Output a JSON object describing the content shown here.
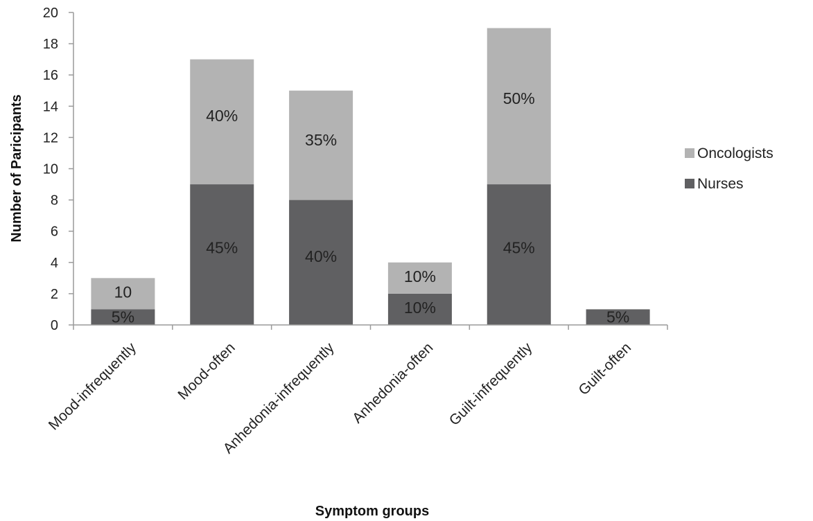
{
  "chart_data": {
    "type": "bar",
    "stacked": true,
    "categories": [
      "Mood-infrequently",
      "Mood-often",
      "Anhedonia-infrequently",
      "Anhedonia-often",
      "Guilt-infrequently",
      "Guilt-often"
    ],
    "series": [
      {
        "name": "Nurses",
        "color": "#606062",
        "values": [
          1,
          9,
          8,
          2,
          9,
          1
        ],
        "labels": [
          "5%",
          "45%",
          "40%",
          "10%",
          "45%",
          "5%"
        ]
      },
      {
        "name": "Oncologists",
        "color": "#b3b3b3",
        "values": [
          2,
          8,
          7,
          2,
          10,
          0
        ],
        "labels": [
          "10",
          "40%",
          "35%",
          "10%",
          "50%",
          ""
        ]
      }
    ],
    "xlabel": "Symptom groups",
    "ylabel": "Number  of  Paricipants",
    "ylim": [
      0,
      20
    ],
    "yticks": [
      0,
      2,
      4,
      6,
      8,
      10,
      12,
      14,
      16,
      18,
      20
    ],
    "grid": false,
    "legend": {
      "position": "right",
      "order": [
        "Oncologists",
        "Nurses"
      ]
    }
  }
}
